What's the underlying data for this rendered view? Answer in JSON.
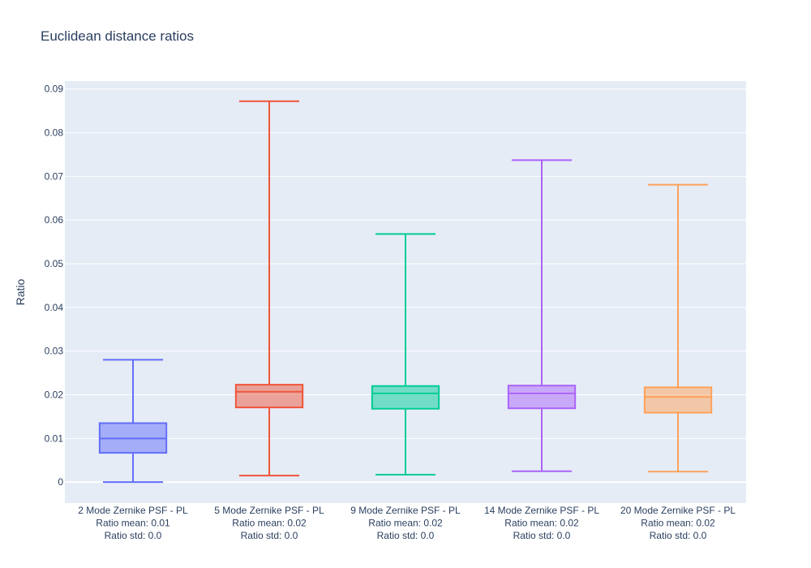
{
  "chart_data": {
    "type": "box",
    "title": "Euclidean distance ratios",
    "xlabel": "",
    "ylabel": "Ratio",
    "ylim": [
      -0.0048,
      0.0918
    ],
    "yticks": [
      0,
      0.01,
      0.02,
      0.03,
      0.04,
      0.05,
      0.06,
      0.07,
      0.08,
      0.09
    ],
    "ytick_labels": [
      "0",
      "0.01",
      "0.02",
      "0.03",
      "0.04",
      "0.05",
      "0.06",
      "0.07",
      "0.08",
      "0.09"
    ],
    "grid": true,
    "legend": "none",
    "series": [
      {
        "category_lines": [
          "2 Mode Zernike PSF - PL",
          "Ratio mean: 0.01",
          "Ratio std: 0.0"
        ],
        "color": "#636efa",
        "fill": "rgba(99,110,250,0.5)",
        "min": 0.0,
        "q1": 0.0067,
        "median": 0.01,
        "q3": 0.0135,
        "max": 0.028
      },
      {
        "category_lines": [
          "5 Mode Zernike PSF - PL",
          "Ratio mean: 0.02",
          "Ratio std: 0.0"
        ],
        "color": "#ef553b",
        "fill": "rgba(239,85,59,0.5)",
        "min": 0.0015,
        "q1": 0.0171,
        "median": 0.0207,
        "q3": 0.0223,
        "max": 0.0872
      },
      {
        "category_lines": [
          "9 Mode Zernike PSF - PL",
          "Ratio mean: 0.02",
          "Ratio std: 0.0"
        ],
        "color": "#00cc96",
        "fill": "rgba(0,204,150,0.5)",
        "min": 0.0017,
        "q1": 0.0168,
        "median": 0.0203,
        "q3": 0.022,
        "max": 0.0568
      },
      {
        "category_lines": [
          "14 Mode Zernike PSF - PL",
          "Ratio mean: 0.02",
          "Ratio std: 0.0"
        ],
        "color": "#ab63fa",
        "fill": "rgba(171,99,250,0.5)",
        "min": 0.0025,
        "q1": 0.0169,
        "median": 0.0203,
        "q3": 0.0221,
        "max": 0.0737
      },
      {
        "category_lines": [
          "20 Mode Zernike PSF - PL",
          "Ratio mean: 0.02",
          "Ratio std: 0.0"
        ],
        "color": "#ffa15a",
        "fill": "rgba(255,161,90,0.5)",
        "min": 0.0024,
        "q1": 0.0159,
        "median": 0.0195,
        "q3": 0.0217,
        "max": 0.0681
      }
    ]
  },
  "colors": {
    "plot_bg": "#e5ecf6",
    "grid": "#ffffff",
    "text": "#2a3f5f"
  }
}
